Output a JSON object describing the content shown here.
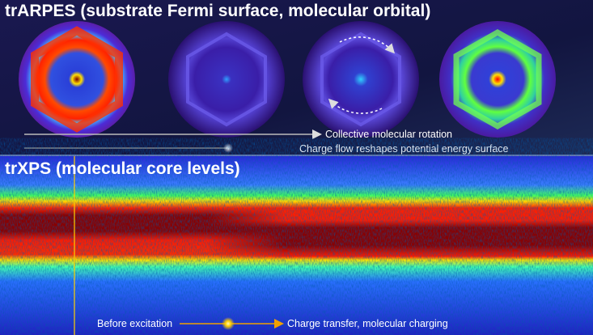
{
  "top_panel": {
    "title": "trARPES (substrate Fermi surface, molecular orbital)",
    "arrow_1": "Collective molecular rotation",
    "arrow_2": "Charge flow reshapes potential energy surface"
  },
  "bottom_panel": {
    "title": "trXPS (molecular core levels)",
    "start_label": "Before excitation",
    "end_label": "Charge transfer, molecular charging"
  }
}
